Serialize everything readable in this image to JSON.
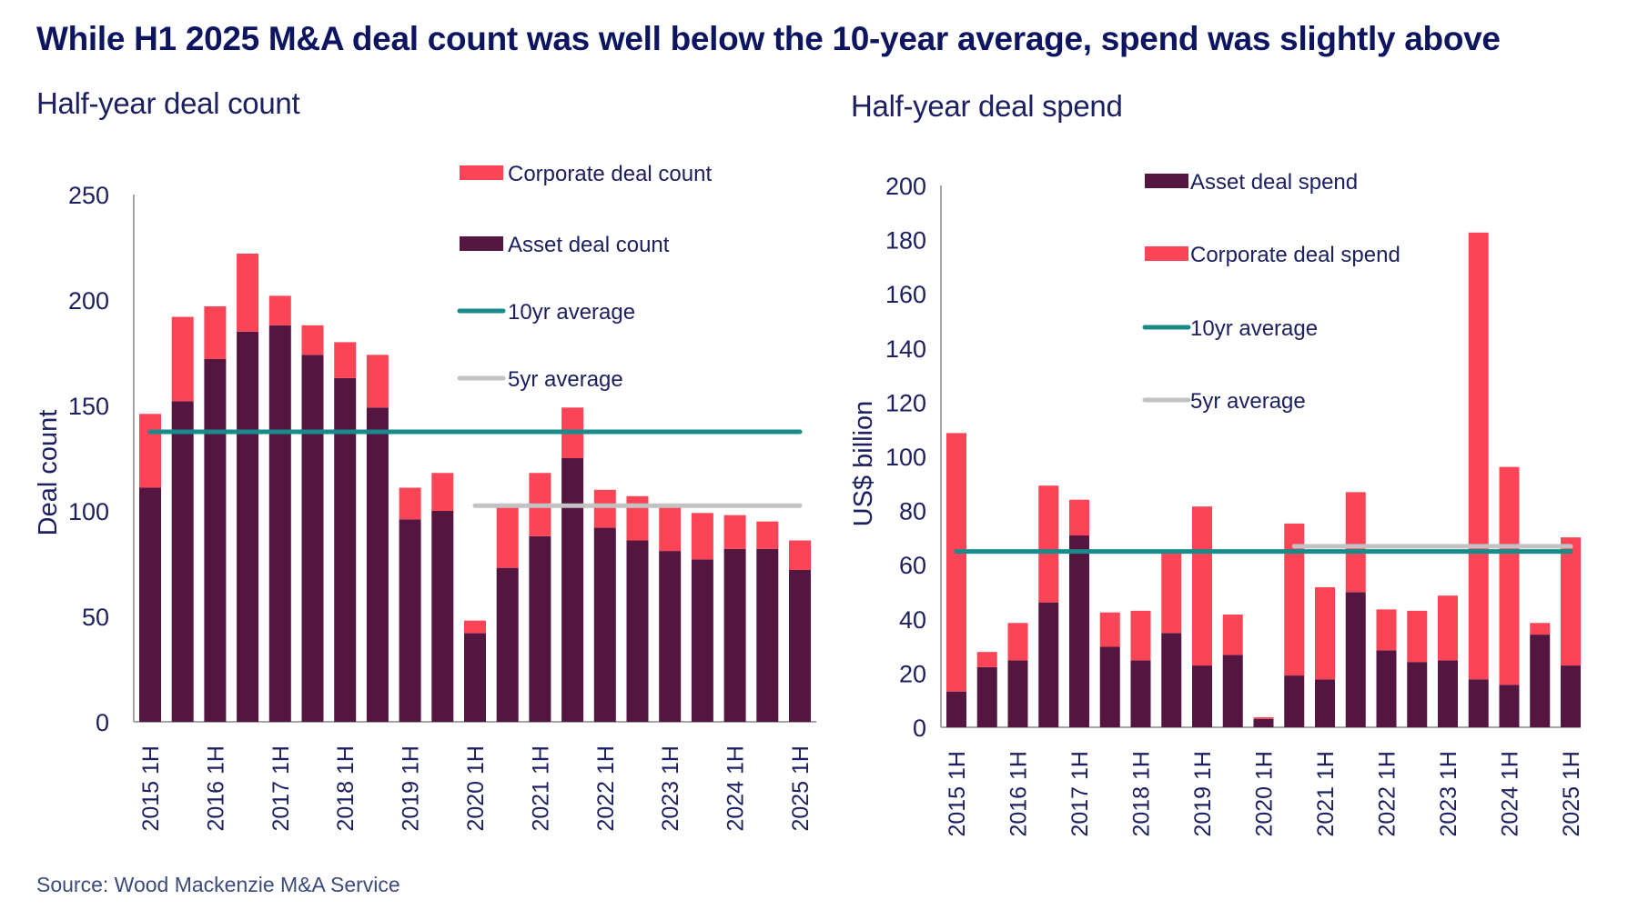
{
  "title": "While H1 2025 M&A deal count was well below the 10-year average, spend was slightly above",
  "source": "Source: Wood Mackenzie M&A Service",
  "colors": {
    "asset": "#541540",
    "corporate": "#fb4556",
    "avg10": "#188a8a",
    "avg5": "#c2c2c2",
    "axis": "#a6a6a6",
    "text": "#1c2060"
  },
  "chart_data": [
    {
      "type": "bar",
      "stacked": true,
      "title": "Half-year deal count",
      "xlabel": "",
      "ylabel": "Deal count",
      "ylim": [
        0,
        250
      ],
      "yticks": [
        0,
        50,
        100,
        150,
        200,
        250
      ],
      "grid": false,
      "categories": [
        "2015 1H",
        "2015 2H",
        "2016 1H",
        "2016 2H",
        "2017 1H",
        "2017 2H",
        "2018 1H",
        "2018 2H",
        "2019 1H",
        "2019 2H",
        "2020 1H",
        "2020 2H",
        "2021 1H",
        "2021 2H",
        "2022 1H",
        "2022 2H",
        "2023 1H",
        "2023 2H",
        "2024 1H",
        "2024 2H",
        "2025 1H"
      ],
      "xtick_labels": [
        "2015 1H",
        "",
        "2016 1H",
        "",
        "2017 1H",
        "",
        "2018 1H",
        "",
        "2019 1H",
        "",
        "2020 1H",
        "",
        "2021 1H",
        "",
        "2022 1H",
        "",
        "2023 1H",
        "",
        "2024 1H",
        "",
        "2025 1H"
      ],
      "series": [
        {
          "name": "Asset deal count",
          "color_key": "asset",
          "values": [
            111,
            152,
            172,
            185,
            188,
            174,
            163,
            149,
            96,
            100,
            42,
            73,
            88,
            125,
            92,
            86,
            81,
            77,
            82,
            82,
            72
          ]
        },
        {
          "name": "Corporate deal count",
          "color_key": "corporate",
          "values": [
            35,
            40,
            25,
            37,
            14,
            14,
            17,
            25,
            15,
            18,
            6,
            29,
            30,
            24,
            18,
            21,
            21,
            22,
            16,
            13,
            14
          ]
        }
      ],
      "lines": [
        {
          "name": "10yr average",
          "color_key": "avg10",
          "value": 137.5,
          "from": "2015 1H",
          "to": "2025 1H"
        },
        {
          "name": "5yr average",
          "color_key": "avg5",
          "value": 102.5,
          "from": "2020 1H",
          "to": "2025 1H"
        }
      ],
      "legend": {
        "placement": "top-right",
        "order": [
          "Corporate deal count",
          "Asset deal count",
          "10yr average",
          "5yr average"
        ]
      }
    },
    {
      "type": "bar",
      "stacked": true,
      "title": "Half-year deal spend",
      "xlabel": "",
      "ylabel": "US$ billion",
      "ylim": [
        0,
        200
      ],
      "yticks": [
        0,
        20,
        40,
        60,
        80,
        100,
        120,
        140,
        160,
        180,
        200
      ],
      "grid": false,
      "categories": [
        "2015 1H",
        "2015 2H",
        "2016 1H",
        "2016 2H",
        "2017 1H",
        "2017 2H",
        "2018 1H",
        "2018 2H",
        "2019 1H",
        "2019 2H",
        "2020 1H",
        "2020 2H",
        "2021 1H",
        "2021 2H",
        "2022 1H",
        "2022 2H",
        "2023 1H",
        "2023 2H",
        "2024 1H",
        "2024 2H",
        "2025 1H"
      ],
      "xtick_labels": [
        "2015 1H",
        "",
        "2016 1H",
        "",
        "2017 1H",
        "",
        "2018 1H",
        "",
        "2019 1H",
        "",
        "2020 1H",
        "",
        "2021 1H",
        "",
        "2022 1H",
        "",
        "2023 1H",
        "",
        "2024 1H",
        "",
        "2025 1H"
      ],
      "series": [
        {
          "name": "Asset deal spend",
          "color_key": "asset",
          "values": [
            13.2,
            22.2,
            24.7,
            46.1,
            70.8,
            29.7,
            24.7,
            34.8,
            22.8,
            26.7,
            3.1,
            19.1,
            17.7,
            49.9,
            28.4,
            24.1,
            24.7,
            17.7,
            15.7,
            34.2,
            22.8
          ]
        },
        {
          "name": "Corporate deal spend",
          "color_key": "corporate",
          "values": [
            95.4,
            5.6,
            13.8,
            43.1,
            13.2,
            12.7,
            18.3,
            30.1,
            58.7,
            14.9,
            0.6,
            56.1,
            34.0,
            36.9,
            15.1,
            18.9,
            23.9,
            164.9,
            80.4,
            4.3,
            47.3
          ]
        }
      ],
      "lines": [
        {
          "name": "10yr average",
          "color_key": "avg10",
          "value": 64.9,
          "from": "2015 1H",
          "to": "2025 1H"
        },
        {
          "name": "5yr average",
          "color_key": "avg5",
          "value": 66.8,
          "from": "2020 2H",
          "to": "2025 1H"
        }
      ],
      "legend": {
        "placement": "top-right",
        "order": [
          "Asset deal spend",
          "Corporate deal spend",
          "10yr average",
          "5yr average"
        ]
      }
    }
  ]
}
